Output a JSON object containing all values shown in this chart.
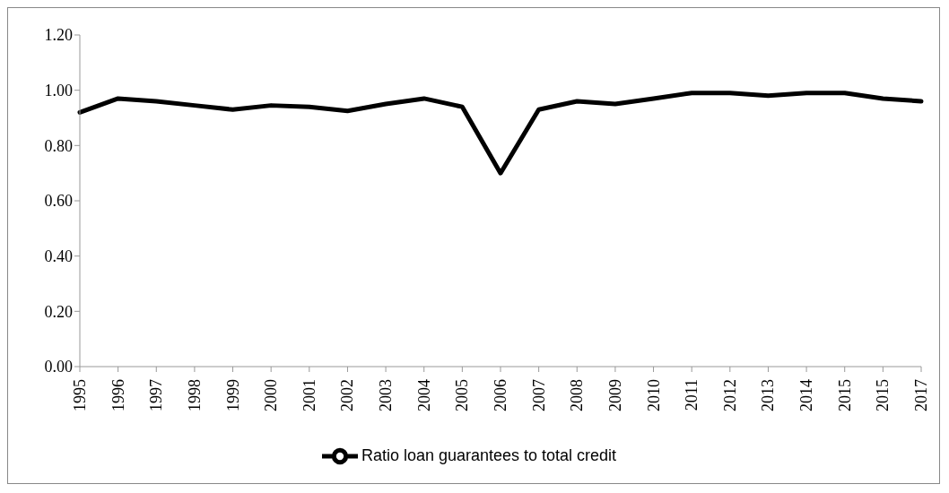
{
  "chart_data": {
    "type": "line",
    "categories": [
      "1995",
      "1996",
      "1997",
      "1998",
      "1999",
      "2000",
      "2001",
      "2002",
      "2003",
      "2004",
      "2005",
      "2006",
      "2007",
      "2008",
      "2009",
      "2010",
      "2011",
      "2012",
      "2013",
      "2014",
      "2015",
      "2015",
      "2017"
    ],
    "series": [
      {
        "name": "Ratio loan guarantees to total credit",
        "color": "#000000",
        "values": [
          0.92,
          0.97,
          0.96,
          0.945,
          0.93,
          0.945,
          0.94,
          0.925,
          0.95,
          0.97,
          0.94,
          0.7,
          0.93,
          0.96,
          0.95,
          0.97,
          0.99,
          0.99,
          0.98,
          0.99,
          0.99,
          0.97,
          0.96
        ]
      }
    ],
    "ylim": [
      0,
      1.2
    ],
    "yticks": [
      {
        "value": 0,
        "label": "0.00"
      },
      {
        "value": 0.2,
        "label": "0.20"
      },
      {
        "value": 0.4,
        "label": "0.40"
      },
      {
        "value": 0.6,
        "label": "0.60"
      },
      {
        "value": 0.8,
        "label": "0.80"
      },
      {
        "value": 1.0,
        "label": "1.00"
      },
      {
        "value": 1.2,
        "label": "1.20"
      }
    ],
    "grid": false,
    "legend": "bottom",
    "marker": "none",
    "line_style": "solid"
  }
}
